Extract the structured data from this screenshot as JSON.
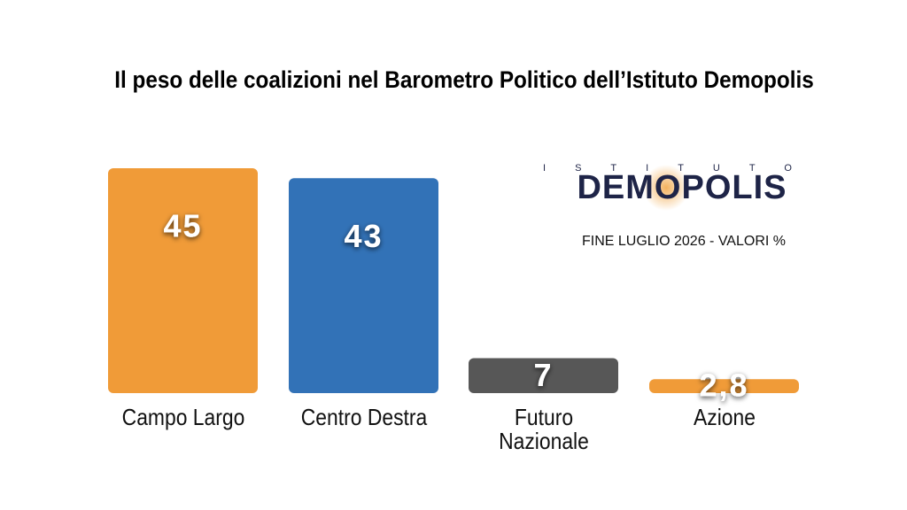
{
  "chart_data": {
    "type": "bar",
    "title": "Il peso delle coalizioni nel Barometro Politico dell’Istituto Demopolis",
    "logo": {
      "top": "ISTITUTO",
      "name": "DEMOPOLIS"
    },
    "subtitle": "FINE LUGLIO 2026 - VALORI %",
    "categories": [
      "Campo Largo",
      "Centro Destra",
      "Futuro Nazionale",
      "Azione"
    ],
    "values": [
      45,
      43,
      7,
      2.8
    ],
    "value_labels": [
      "45",
      "43",
      "7",
      "2,8"
    ],
    "colors": [
      "#f09b38",
      "#3272b7",
      "#575757",
      "#f09b38"
    ]
  }
}
